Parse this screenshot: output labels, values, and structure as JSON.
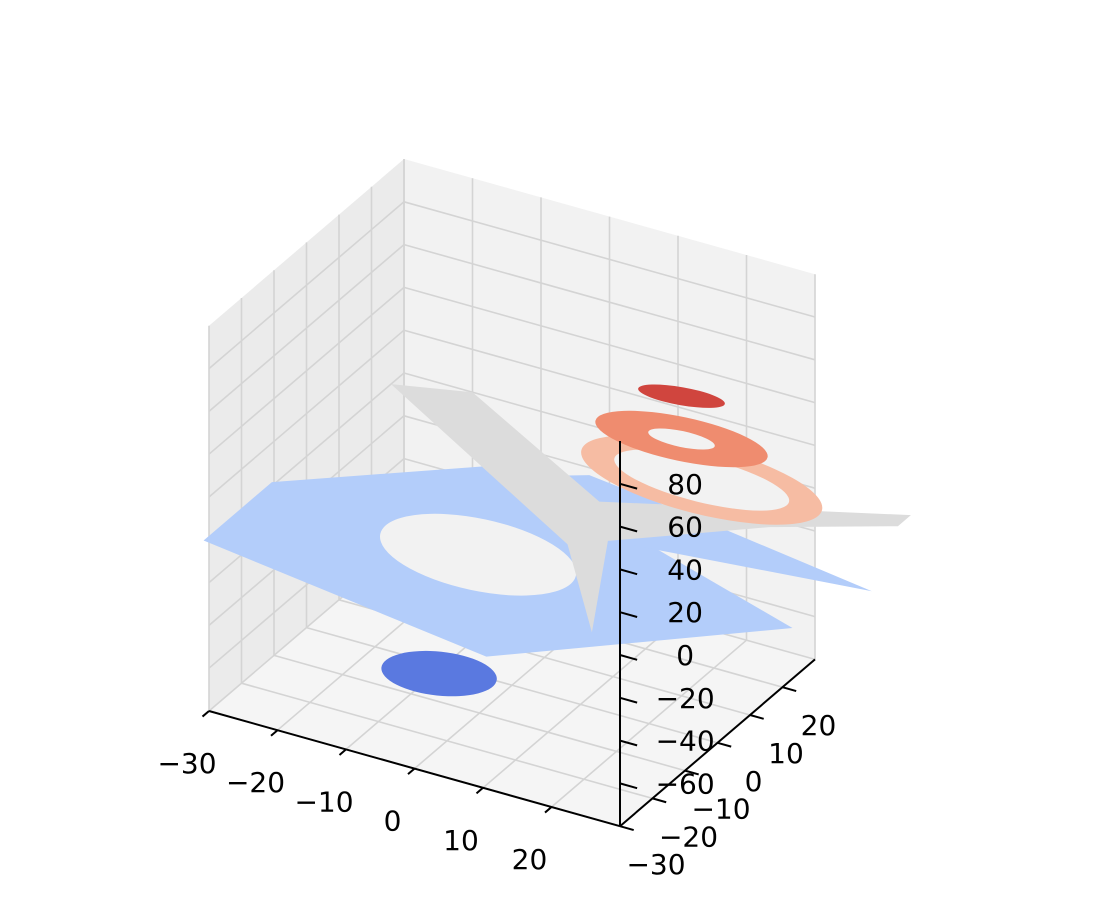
{
  "chart_data": {
    "type": "contour3d",
    "title": "",
    "xlabel": "",
    "ylabel": "",
    "zlabel": "",
    "xlim": [
      -30,
      30
    ],
    "ylim": [
      -30,
      30
    ],
    "zlim": [
      -80,
      100
    ],
    "x_ticks": [
      -30,
      -20,
      -10,
      0,
      10,
      20
    ],
    "y_ticks": [
      -30,
      -20,
      -10,
      0,
      10,
      20
    ],
    "z_ticks": [
      -60,
      -40,
      -20,
      0,
      20,
      40,
      60,
      80
    ],
    "x_tick_labels": [
      "−30",
      "−20",
      "−10",
      "0",
      "10",
      "20"
    ],
    "y_tick_labels": [
      "−30",
      "−20",
      "−10",
      "0",
      "10",
      "20"
    ],
    "z_tick_labels": [
      "−60",
      "−40",
      "−20",
      "0",
      "20",
      "40",
      "60",
      "80"
    ],
    "grid": true,
    "colormap": "coolwarm",
    "pane_colors": {
      "left": "#ebebeb",
      "back": "#f2f2f2",
      "floor": "#f5f5f5"
    },
    "levels": [
      {
        "z": -60,
        "color": "#5a79e0"
      },
      {
        "z": -40,
        "color": "#86a8f5"
      },
      {
        "z": -20,
        "color": "#b3cdfa"
      },
      {
        "z": 0,
        "color": "#dcdcdc"
      },
      {
        "z": 20,
        "color": "#f6bca3"
      },
      {
        "z": 40,
        "color": "#ef8c6f"
      },
      {
        "z": 60,
        "color": "#d0453e"
      }
    ]
  }
}
